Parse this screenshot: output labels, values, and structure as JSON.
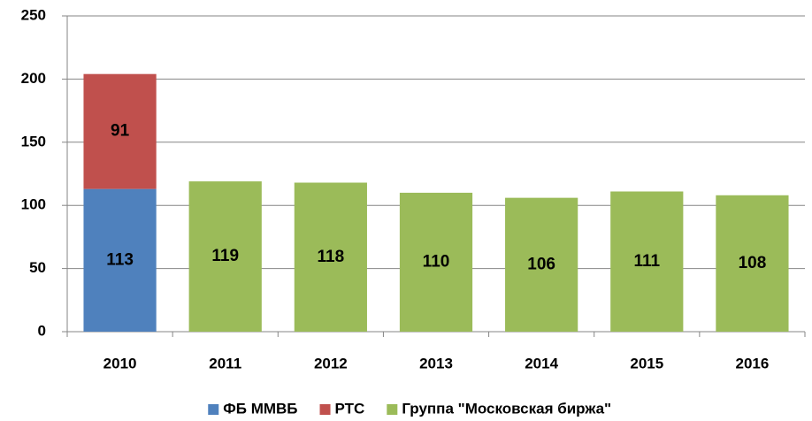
{
  "chart_data": {
    "type": "stacked_bar",
    "categories": [
      "2010",
      "2011",
      "2012",
      "2013",
      "2014",
      "2015",
      "2016"
    ],
    "series": [
      {
        "name": "ФБ ММВБ",
        "color": "#4f81bd",
        "values": [
          113,
          null,
          null,
          null,
          null,
          null,
          null
        ]
      },
      {
        "name": "РТС",
        "color": "#c0504d",
        "values": [
          91,
          null,
          null,
          null,
          null,
          null,
          null
        ]
      },
      {
        "name": "Группа \"Московская биржа\"",
        "color": "#9bbb59",
        "values": [
          null,
          119,
          118,
          110,
          106,
          111,
          108
        ]
      }
    ],
    "ylim": [
      0,
      250
    ],
    "yticks": [
      0,
      50,
      100,
      150,
      200,
      250
    ],
    "grid": true,
    "legend": "bottom"
  }
}
